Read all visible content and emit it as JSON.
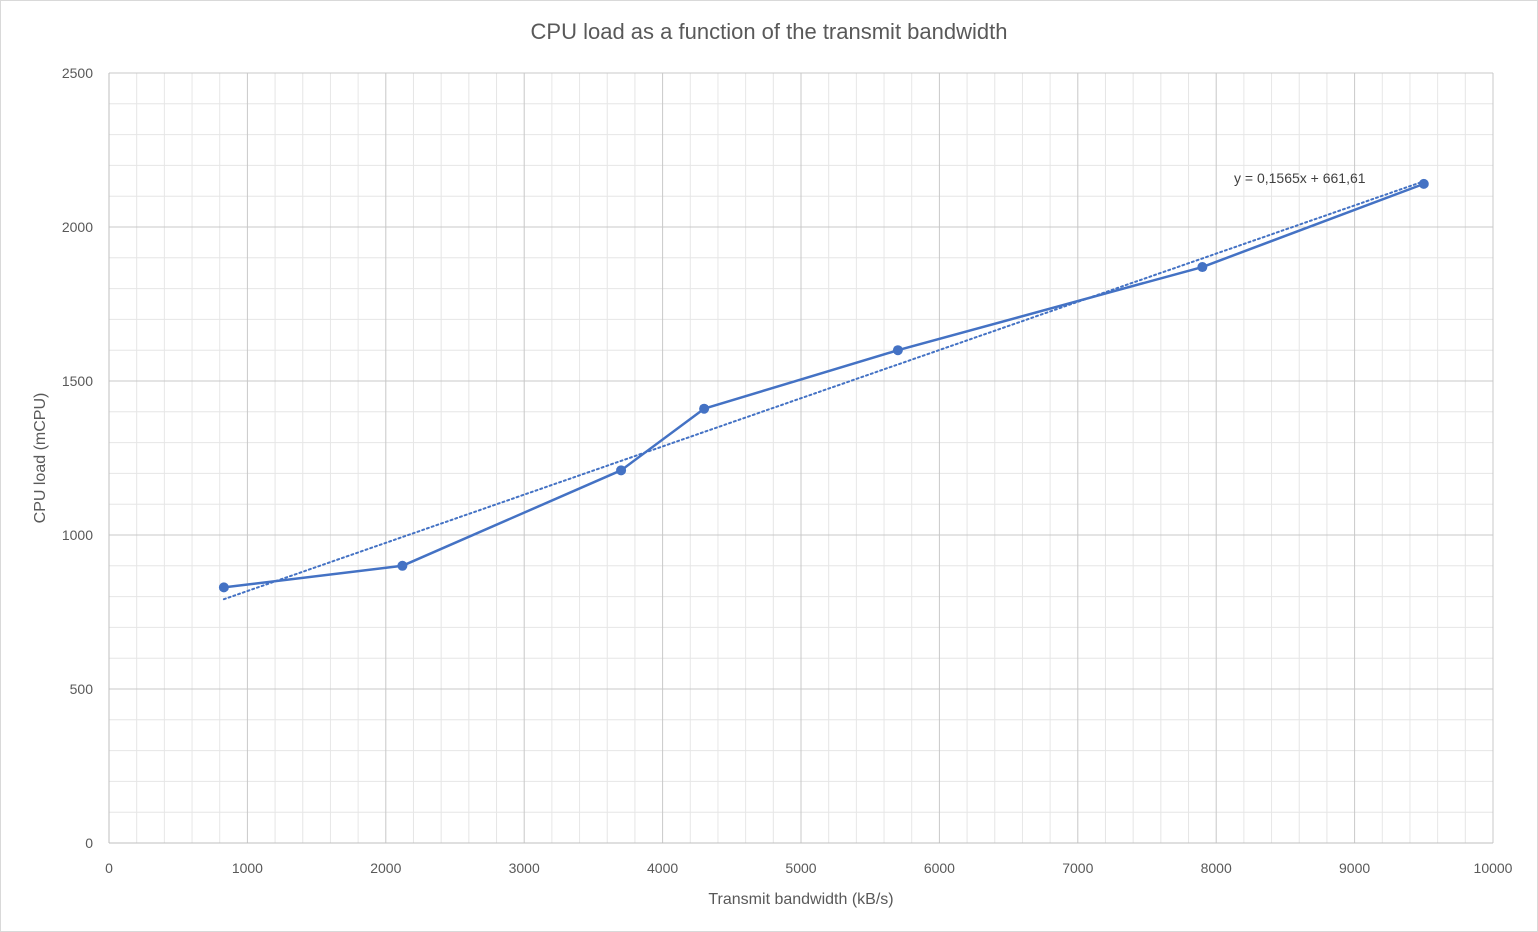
{
  "chart_data": {
    "type": "line",
    "title": "CPU load as a function of the transmit bandwidth",
    "xlabel": "Transmit bandwidth (kB/s)",
    "ylabel": "CPU load (mCPU)",
    "xlim": [
      0,
      10000
    ],
    "ylim": [
      0,
      2500
    ],
    "x_ticks": [
      0,
      1000,
      2000,
      3000,
      4000,
      5000,
      6000,
      7000,
      8000,
      9000,
      10000
    ],
    "y_ticks": [
      0,
      500,
      1000,
      1500,
      2000,
      2500
    ],
    "x_tick_labels": [
      "0",
      "1000",
      "2000",
      "3000",
      "4000",
      "5000",
      "6000",
      "7000",
      "8000",
      "9000",
      "10000"
    ],
    "y_tick_labels": [
      "0",
      "500",
      "1000",
      "1500",
      "2000",
      "2500"
    ],
    "grid": "major and minor",
    "legend": "none",
    "series": [
      {
        "x": [
          830,
          2120,
          3700,
          4300,
          5700,
          7900,
          9500
        ],
        "y": [
          830,
          900,
          1210,
          1410,
          1600,
          1870,
          2140
        ],
        "color": "#4472c4",
        "markers": true
      }
    ],
    "trendline": {
      "kind": "linear",
      "slope": 0.1565,
      "intercept": 661.61,
      "x_range": [
        830,
        9500
      ],
      "style": "dotted",
      "color": "#4472c4",
      "equation_label": "y = 0,1565x + 661,61"
    }
  }
}
